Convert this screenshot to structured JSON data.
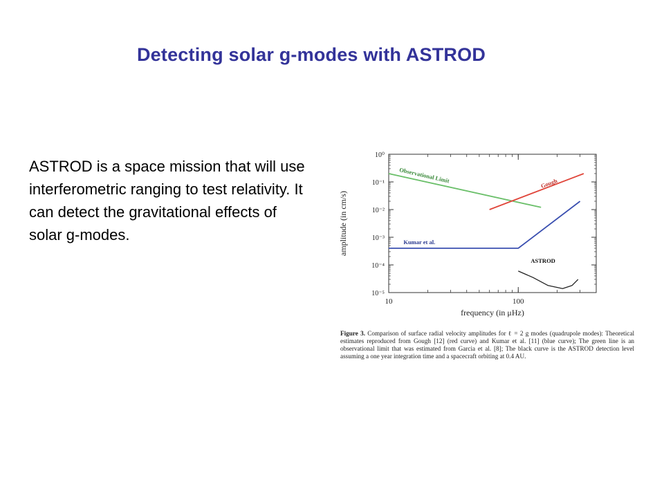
{
  "slide": {
    "title": "Detecting solar g-modes with ASTROD",
    "body": "ASTROD is a space mission  that will use interferometric ranging to test relativity. It can detect the gravitational effects of solar g-modes."
  },
  "figure": {
    "caption_label": "Figure 3.",
    "caption_text": "Comparison of surface radial velocity amplitudes for ℓ = 2 g modes (quadrupole modes): Theoretical estimates reproduced from Gough [12] (red curve) and Kumar et al. [11] (blue curve); The green line is an observational limit that was estimated from Garcia et al. [8]; The black curve is the ASTROD detection level assuming a one year integration time and a spacecraft orbiting at 0.4 AU."
  },
  "chart_data": {
    "type": "line",
    "xlabel": "frequency (in μHz)",
    "ylabel": "amplitude (in cm/s)",
    "x_scale": "log",
    "y_scale": "log",
    "xlim": [
      10,
      400
    ],
    "ylim": [
      1e-05,
      1
    ],
    "x_ticks": [
      {
        "value": 10,
        "label": "10"
      },
      {
        "value": 100,
        "label": "100"
      }
    ],
    "y_ticks": [
      {
        "value": 1,
        "label": "10⁰"
      },
      {
        "value": 0.1,
        "label": "10⁻¹"
      },
      {
        "value": 0.01,
        "label": "10⁻²"
      },
      {
        "value": 0.001,
        "label": "10⁻³"
      },
      {
        "value": 0.0001,
        "label": "10⁻⁴"
      },
      {
        "value": 1e-05,
        "label": "10⁻⁵"
      }
    ],
    "series": [
      {
        "name": "Observational Limit",
        "color": "#6abf69",
        "points": [
          [
            10,
            0.2
          ],
          [
            150,
            0.012
          ]
        ]
      },
      {
        "name": "Gough",
        "color": "#e0453a",
        "points": [
          [
            60,
            0.01
          ],
          [
            320,
            0.2
          ]
        ]
      },
      {
        "name": "Kumar et al.",
        "color": "#3a4fb0",
        "points": [
          [
            10,
            0.0004
          ],
          [
            100,
            0.0004
          ],
          [
            300,
            0.02
          ]
        ]
      },
      {
        "name": "ASTROD",
        "color": "#222222",
        "points": [
          [
            100,
            6e-05
          ],
          [
            130,
            3.5e-05
          ],
          [
            170,
            1.8e-05
          ],
          [
            220,
            1.4e-05
          ],
          [
            260,
            1.8e-05
          ],
          [
            290,
            3e-05
          ]
        ]
      }
    ]
  }
}
